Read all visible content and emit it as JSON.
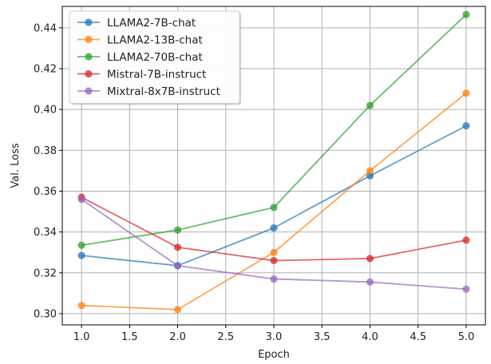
{
  "chart_data": {
    "type": "line",
    "xlabel": "Epoch",
    "ylabel": "Val. Loss",
    "x": [
      1.0,
      2.0,
      3.0,
      4.0,
      5.0
    ],
    "xlim": [
      0.8,
      5.2
    ],
    "ylim": [
      0.2945,
      0.4505
    ],
    "xticks": [
      "1.0",
      "1.5",
      "2.0",
      "2.5",
      "3.0",
      "3.5",
      "4.0",
      "4.5",
      "5.0"
    ],
    "yticks": [
      "0.30",
      "0.32",
      "0.34",
      "0.36",
      "0.38",
      "0.40",
      "0.42",
      "0.44"
    ],
    "grid": true,
    "legend_position": "top-left",
    "series": [
      {
        "name": "LLAMA2-7B-chat",
        "color": "#1f77b4",
        "values": [
          0.3285,
          0.3235,
          0.342,
          0.3675,
          0.392
        ]
      },
      {
        "name": "LLAMA2-13B-chat",
        "color": "#ff7f0e",
        "values": [
          0.304,
          0.302,
          0.33,
          0.37,
          0.408
        ]
      },
      {
        "name": "LLAMA2-70B-chat",
        "color": "#2ca02c",
        "values": [
          0.3335,
          0.341,
          0.352,
          0.402,
          0.4465
        ]
      },
      {
        "name": "Mistral-7B-instruct",
        "color": "#d62728",
        "values": [
          0.357,
          0.3325,
          0.326,
          0.327,
          0.336
        ]
      },
      {
        "name": "Mixtral-8x7B-instruct",
        "color": "#9467bd",
        "values": [
          0.356,
          0.3235,
          0.317,
          0.3155,
          0.312
        ]
      }
    ]
  }
}
